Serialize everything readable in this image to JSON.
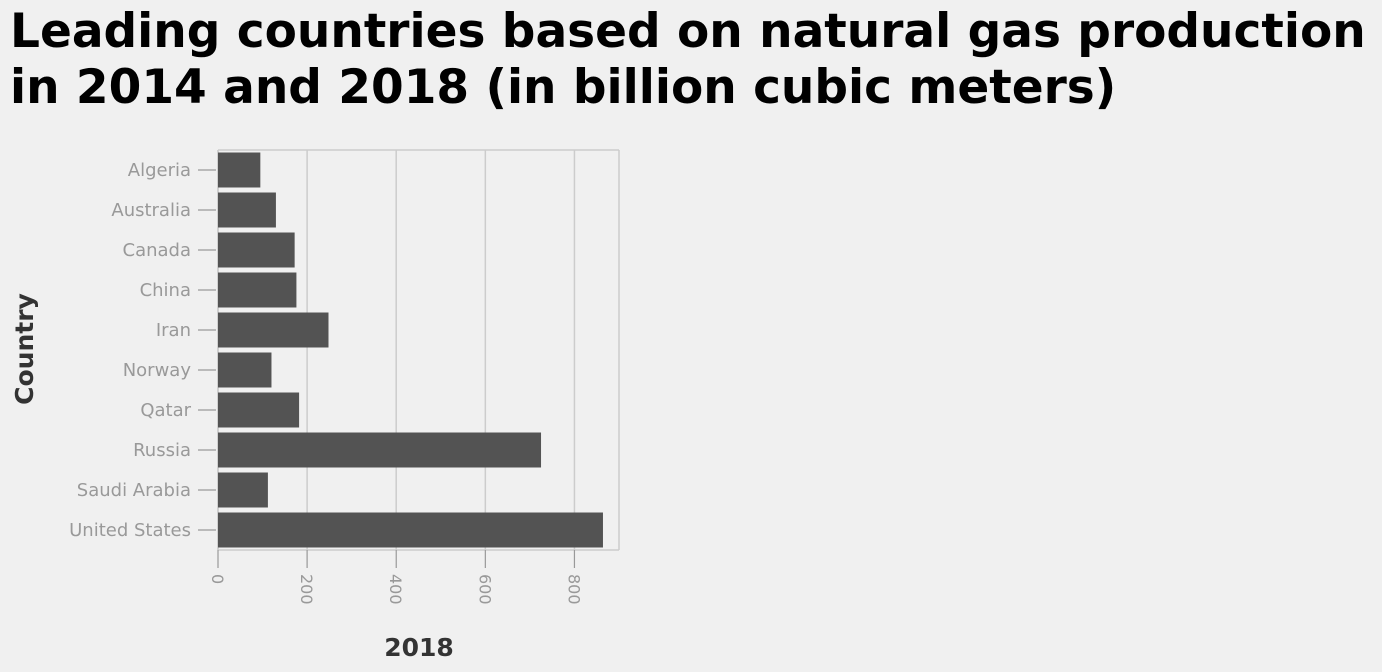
{
  "chart_data": {
    "type": "bar",
    "orientation": "horizontal",
    "title_lines": [
      "Leading countries based on natural gas production",
      "in 2014 and 2018 (in billion cubic meters)"
    ],
    "xlabel": "2018",
    "ylabel": "Country",
    "categories": [
      "Algeria",
      "Australia",
      "Canada",
      "China",
      "Iran",
      "Norway",
      "Qatar",
      "Russia",
      "Saudi Arabia",
      "United States"
    ],
    "values": [
      95,
      130,
      172,
      176,
      248,
      120,
      182,
      725,
      112,
      864
    ],
    "xlim": [
      0,
      900
    ],
    "xticks": [
      0,
      200,
      400,
      600,
      800
    ],
    "grid": true,
    "bar_color": "#535353"
  }
}
